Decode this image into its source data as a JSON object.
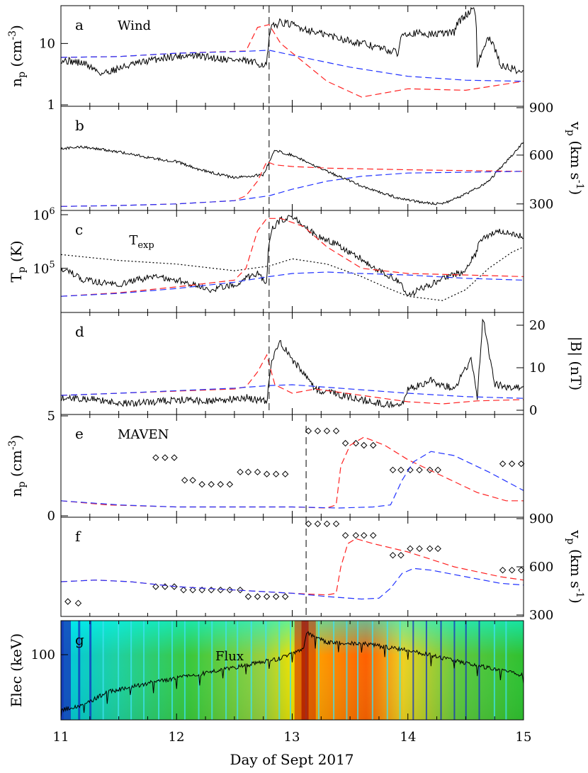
{
  "x_axis": {
    "label": "Day of Sept 2017",
    "range": [
      11,
      15
    ],
    "ticks": [
      "11",
      "12",
      "13",
      "14",
      "15"
    ]
  },
  "panels": [
    {
      "id": "a",
      "letter": "a",
      "name": "Wind",
      "left_label": "n_p (cm^-3)",
      "left_log": true,
      "left_range": [
        1,
        40
      ],
      "left_ticks": [
        "1",
        "10"
      ],
      "shock_day": 12.8
    },
    {
      "id": "b",
      "letter": "b",
      "right_label": "v_p (km s^-1)",
      "right_range": [
        260,
        900
      ],
      "right_ticks": [
        "300",
        "600",
        "900"
      ],
      "shock_day": 12.8
    },
    {
      "id": "c",
      "letter": "c",
      "annotation": "T_exp",
      "left_label": "T_p (K)",
      "left_log": true,
      "left_range": [
        15000,
        1200000
      ],
      "left_ticks": [
        "10^5",
        "10^6"
      ],
      "shock_day": 12.8
    },
    {
      "id": "d",
      "letter": "d",
      "right_label": "|B| (nT)",
      "right_range": [
        -1,
        23
      ],
      "right_ticks": [
        "0",
        "10",
        "20"
      ],
      "shock_day": 12.8
    },
    {
      "id": "e",
      "letter": "e",
      "name": "MAVEN",
      "left_label": "n_p (cm^-3)",
      "left_range": [
        0,
        5
      ],
      "left_ticks": [
        "0",
        "5"
      ],
      "shock_day": 13.12
    },
    {
      "id": "f",
      "letter": "f",
      "right_label": "v_p (km s^-1)",
      "right_range": [
        300,
        900
      ],
      "right_ticks": [
        "300",
        "600",
        "900"
      ],
      "shock_day": 13.12
    },
    {
      "id": "g",
      "letter": "g",
      "annotation": "Flux",
      "left_label": "Elec (keV)",
      "left_ticks": [
        "100"
      ]
    }
  ],
  "chart_data": [
    {
      "panel": "a",
      "type": "line",
      "ylabel": "n_p (cm^-3)",
      "yscale": "log",
      "ylim": [
        1,
        40
      ],
      "series": [
        {
          "style": "black solid",
          "color": "#000000",
          "x": [
            11.0,
            11.2,
            11.35,
            11.6,
            11.9,
            12.1,
            12.3,
            12.6,
            12.78,
            12.82,
            12.9,
            13.2,
            13.5,
            13.8,
            13.92,
            13.95,
            14.2,
            14.4,
            14.42,
            14.5,
            14.58,
            14.6,
            14.7,
            14.8,
            15.0
          ],
          "y": [
            5.5,
            4.8,
            3.3,
            4.5,
            6,
            6.5,
            6,
            5.2,
            4.5,
            18,
            22,
            15,
            11,
            8,
            7,
            15,
            14,
            15,
            20,
            28,
            38,
            4,
            12,
            4.5,
            3.5
          ]
        },
        {
          "style": "red dashed",
          "color": "#ff2222",
          "x": [
            11.0,
            11.5,
            12.0,
            12.6,
            12.7,
            12.8,
            12.9,
            13.1,
            13.3,
            13.6,
            14.0,
            14.5,
            15.0
          ],
          "y": [
            6,
            6.2,
            7,
            7.6,
            18,
            20,
            10,
            5,
            2.5,
            1.4,
            1.9,
            1.8,
            2.5
          ]
        },
        {
          "style": "blue dashed",
          "color": "#2233ff",
          "x": [
            11.0,
            11.5,
            12.0,
            12.6,
            12.8,
            13.0,
            13.5,
            14.0,
            14.5,
            15.0
          ],
          "y": [
            6,
            6.2,
            7,
            7.5,
            7.8,
            6.5,
            4.2,
            3.0,
            2.6,
            2.5
          ]
        }
      ]
    },
    {
      "panel": "b",
      "type": "line",
      "ylabel": "v_p (km s^-1)",
      "ylim": [
        260,
        900
      ],
      "series": [
        {
          "style": "black solid",
          "color": "#000000",
          "x": [
            11.0,
            11.2,
            11.5,
            11.8,
            12.0,
            12.2,
            12.5,
            12.75,
            12.85,
            13.0,
            13.3,
            13.6,
            13.9,
            14.1,
            14.3,
            14.5,
            14.7,
            14.9,
            15.0
          ],
          "y": [
            640,
            650,
            620,
            580,
            560,
            510,
            460,
            480,
            630,
            600,
            500,
            410,
            340,
            310,
            300,
            360,
            440,
            600,
            680
          ]
        },
        {
          "style": "red dashed",
          "color": "#ff2222",
          "x": [
            11.0,
            11.5,
            12.0,
            12.5,
            12.6,
            12.7,
            12.78,
            12.85,
            13.0,
            13.3,
            14.0,
            15.0
          ],
          "y": [
            285,
            290,
            300,
            320,
            350,
            440,
            560,
            540,
            530,
            520,
            510,
            500
          ]
        },
        {
          "style": "blue dashed",
          "color": "#2233ff",
          "x": [
            11.0,
            11.5,
            12.0,
            12.5,
            12.8,
            13.0,
            13.3,
            13.6,
            14.0,
            15.0
          ],
          "y": [
            285,
            290,
            300,
            320,
            350,
            390,
            440,
            470,
            490,
            500
          ]
        }
      ]
    },
    {
      "panel": "c",
      "type": "line",
      "ylabel": "T_p (K)",
      "yscale": "log",
      "ylim": [
        15000,
        1200000
      ],
      "series": [
        {
          "style": "black solid",
          "color": "#000000",
          "x": [
            11.0,
            11.2,
            11.5,
            11.8,
            12.0,
            12.3,
            12.5,
            12.7,
            12.78,
            12.82,
            12.9,
            13.0,
            13.2,
            13.5,
            13.7,
            13.9,
            14.0,
            14.2,
            14.5,
            14.6,
            14.62,
            14.8,
            15.0
          ],
          "y": [
            100000,
            60000,
            50000,
            70000,
            60000,
            40000,
            50000,
            80000,
            50000,
            500000,
            800000,
            900000,
            400000,
            200000,
            100000,
            60000,
            30000,
            50000,
            90000,
            200000,
            350000,
            500000,
            400000
          ]
        },
        {
          "style": "black dotted",
          "color": "#000000",
          "x": [
            11.0,
            11.5,
            12.0,
            12.5,
            12.8,
            13.0,
            13.3,
            13.6,
            13.8,
            14.0,
            14.3,
            14.5,
            14.7,
            14.9,
            15.0
          ],
          "y": [
            180000,
            140000,
            120000,
            90000,
            110000,
            150000,
            120000,
            70000,
            45000,
            30000,
            25000,
            40000,
            100000,
            200000,
            250000
          ]
        },
        {
          "style": "red dashed",
          "color": "#ff2222",
          "x": [
            11.0,
            11.5,
            12.0,
            12.5,
            12.6,
            12.7,
            12.78,
            12.9,
            13.1,
            13.3,
            13.6,
            14.0,
            14.5,
            15.0
          ],
          "y": [
            30000,
            35000,
            45000,
            60000,
            100000,
            500000,
            850000,
            850000,
            600000,
            250000,
            100000,
            80000,
            75000,
            70000
          ]
        },
        {
          "style": "blue dashed",
          "color": "#2233ff",
          "x": [
            11.0,
            11.5,
            12.0,
            12.5,
            12.8,
            13.0,
            13.3,
            13.6,
            14.0,
            14.5,
            15.0
          ],
          "y": [
            30000,
            34000,
            42000,
            55000,
            70000,
            80000,
            85000,
            80000,
            75000,
            65000,
            60000
          ]
        }
      ]
    },
    {
      "panel": "d",
      "type": "line",
      "ylabel": "|B| (nT)",
      "ylim": [
        -1,
        23
      ],
      "series": [
        {
          "style": "black solid",
          "color": "#000000",
          "x": [
            11.0,
            11.3,
            11.6,
            12.0,
            12.3,
            12.6,
            12.78,
            12.82,
            12.9,
            13.0,
            13.2,
            13.5,
            13.8,
            13.95,
            14.0,
            14.2,
            14.4,
            14.55,
            14.6,
            14.65,
            14.75,
            15.0
          ],
          "y": [
            3,
            2.5,
            1.5,
            2.5,
            2,
            3,
            2,
            12,
            16,
            12,
            5,
            3,
            1.5,
            1,
            5,
            7,
            5,
            12,
            3,
            22,
            6,
            5
          ]
        },
        {
          "style": "red dashed",
          "color": "#ff2222",
          "x": [
            11.0,
            11.5,
            12.0,
            12.5,
            12.6,
            12.7,
            12.78,
            12.85,
            13.0,
            13.2,
            13.6,
            14.0,
            14.3,
            14.6,
            15.0
          ],
          "y": [
            3.5,
            4.0,
            4.5,
            5.0,
            5.5,
            9,
            13,
            6,
            4,
            5,
            3.5,
            2.0,
            1.5,
            2.2,
            2.5
          ]
        },
        {
          "style": "blue dashed",
          "color": "#2233ff",
          "x": [
            11.0,
            11.5,
            12.0,
            12.5,
            12.8,
            13.0,
            13.5,
            14.0,
            14.5,
            15.0
          ],
          "y": [
            3.5,
            4.0,
            4.6,
            5.2,
            5.8,
            6.0,
            5.0,
            4.0,
            3.2,
            2.8
          ]
        }
      ]
    },
    {
      "panel": "e",
      "type": "scatter",
      "ylabel": "n_p (cm^-3)",
      "ylim": [
        0,
        5
      ],
      "series": [
        {
          "style": "diamonds",
          "color": "#000000",
          "x": [
            11.82,
            11.9,
            11.98,
            12.07,
            12.14,
            12.22,
            12.3,
            12.38,
            12.46,
            12.55,
            12.62,
            12.7,
            12.78,
            12.86,
            12.94,
            13.14,
            13.22,
            13.3,
            13.38,
            13.46,
            13.55,
            13.62,
            13.7,
            13.87,
            13.94,
            14.02,
            14.1,
            14.19,
            14.26,
            14.82,
            14.9,
            14.98
          ],
          "y": [
            2.9,
            2.9,
            2.9,
            1.8,
            1.8,
            1.6,
            1.6,
            1.6,
            1.6,
            2.2,
            2.2,
            2.2,
            2.1,
            2.1,
            2.1,
            4.2,
            4.2,
            4.2,
            4.2,
            3.6,
            3.6,
            3.5,
            3.5,
            2.3,
            2.3,
            2.3,
            2.3,
            2.3,
            2.3,
            2.6,
            2.6,
            2.6
          ]
        },
        {
          "style": "red dashed",
          "color": "#ff2222",
          "x": [
            11.0,
            11.4,
            12.0,
            12.6,
            13.0,
            13.3,
            13.38,
            13.42,
            13.5,
            13.62,
            13.8,
            14.0,
            14.3,
            14.6,
            14.85,
            15.0
          ],
          "y": [
            0.8,
            0.6,
            0.5,
            0.5,
            0.5,
            0.45,
            0.6,
            2.5,
            3.5,
            3.9,
            3.5,
            2.8,
            2.0,
            1.2,
            0.8,
            0.8
          ]
        },
        {
          "style": "blue dashed",
          "color": "#2233ff",
          "x": [
            11.0,
            11.5,
            12.0,
            12.6,
            13.0,
            13.4,
            13.7,
            13.85,
            13.95,
            14.05,
            14.2,
            14.4,
            14.7,
            15.0
          ],
          "y": [
            0.8,
            0.6,
            0.5,
            0.5,
            0.5,
            0.45,
            0.5,
            0.6,
            1.8,
            2.7,
            3.2,
            3.0,
            2.2,
            1.3
          ]
        }
      ]
    },
    {
      "panel": "f",
      "type": "scatter",
      "ylabel": "v_p (km s^-1)",
      "ylim": [
        300,
        900
      ],
      "series": [
        {
          "style": "diamonds",
          "color": "#000000",
          "x": [
            11.06,
            11.15,
            11.82,
            11.9,
            11.98,
            12.06,
            12.14,
            12.22,
            12.3,
            12.38,
            12.46,
            12.55,
            12.62,
            12.7,
            12.78,
            12.86,
            12.94,
            13.14,
            13.22,
            13.3,
            13.38,
            13.46,
            13.55,
            13.62,
            13.7,
            13.87,
            13.94,
            14.02,
            14.1,
            14.19,
            14.26,
            14.82,
            14.9,
            14.98
          ],
          "y": [
            390,
            380,
            480,
            480,
            480,
            460,
            460,
            460,
            460,
            460,
            460,
            460,
            420,
            420,
            420,
            420,
            420,
            860,
            860,
            860,
            860,
            790,
            790,
            790,
            790,
            670,
            670,
            710,
            710,
            710,
            710,
            580,
            580,
            580
          ]
        },
        {
          "style": "red dashed",
          "color": "#ff2222",
          "x": [
            11.0,
            11.3,
            11.6,
            12.0,
            12.5,
            13.0,
            13.3,
            13.38,
            13.42,
            13.48,
            13.55,
            13.7,
            14.0,
            14.4,
            14.8,
            15.0
          ],
          "y": [
            510,
            520,
            510,
            480,
            460,
            440,
            430,
            440,
            600,
            740,
            770,
            740,
            690,
            600,
            540,
            520
          ]
        },
        {
          "style": "blue dashed",
          "color": "#2233ff",
          "x": [
            11.0,
            11.3,
            11.6,
            12.0,
            12.5,
            13.0,
            13.3,
            13.6,
            13.75,
            13.85,
            13.95,
            14.05,
            14.2,
            14.5,
            14.8,
            15.0
          ],
          "y": [
            510,
            520,
            510,
            480,
            460,
            440,
            420,
            405,
            410,
            470,
            560,
            590,
            580,
            540,
            500,
            490
          ]
        }
      ]
    },
    {
      "panel": "g",
      "type": "heatmap",
      "ylabel": "Elec (keV)",
      "series": [
        {
          "name": "Flux",
          "style": "black solid",
          "color": "#000000",
          "x": [
            11.0,
            11.2,
            11.4,
            11.8,
            12.2,
            12.6,
            12.9,
            13.1,
            13.12,
            13.3,
            13.6,
            14.0,
            14.4,
            14.8,
            15.0
          ],
          "y": [
            0.1,
            0.15,
            0.28,
            0.38,
            0.46,
            0.55,
            0.62,
            0.72,
            0.88,
            0.78,
            0.77,
            0.7,
            0.6,
            0.5,
            0.45
          ]
        }
      ]
    }
  ]
}
